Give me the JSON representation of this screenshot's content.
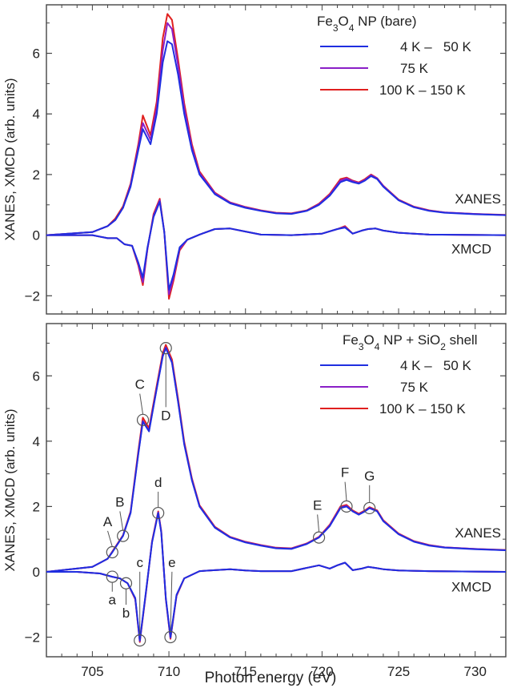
{
  "colors": {
    "blue": "#1f2ee0",
    "purple": "#8a1fc7",
    "red": "#e0201f",
    "axis": "#444444",
    "text": "#222222"
  },
  "x_axis": {
    "label": "Photon energy (eV)",
    "ticks": [
      "705",
      "710",
      "715",
      "720",
      "725",
      "730"
    ]
  },
  "chart_data": [
    {
      "type": "line",
      "title": "Fe3O4 NP (bare)",
      "legend_title": {
        "pre": "Fe",
        "sub1": "3",
        "mid": "O",
        "sub2": "4",
        "post": " NP (bare)"
      },
      "ylabel": "XANES, XMCD (arb. units)",
      "xlim": [
        702,
        732
      ],
      "ylim": [
        -2.6,
        7.6
      ],
      "yticks": [
        "−2",
        "0",
        "2",
        "4",
        "6"
      ],
      "legend": [
        {
          "name": "4 K –   50 K",
          "color": "blue"
        },
        {
          "name": "75 K",
          "color": "purple"
        },
        {
          "name": "100 K – 150 K",
          "color": "red"
        }
      ],
      "series_labels": {
        "xanes": "XANES",
        "xmcd": "XMCD"
      },
      "xanes_x": [
        702,
        705,
        706,
        706.5,
        707,
        707.5,
        708,
        708.3,
        708.8,
        709.2,
        709.6,
        709.9,
        710.2,
        710.6,
        711,
        711.5,
        712,
        713,
        714,
        715,
        716,
        717,
        718,
        719,
        719.8,
        720.5,
        721.2,
        721.6,
        722,
        722.4,
        722.8,
        723.2,
        723.6,
        724,
        725,
        726,
        727,
        728,
        730,
        732
      ],
      "xanes_series": [
        {
          "name": "4 K – 50 K",
          "color": "blue",
          "peak_scale": 0.88,
          "y": [
            0,
            0.1,
            0.3,
            0.5,
            0.9,
            1.6,
            2.8,
            3.5,
            3.0,
            4.0,
            5.7,
            6.4,
            6.3,
            5.3,
            4.0,
            2.8,
            2.0,
            1.35,
            1.05,
            0.9,
            0.8,
            0.72,
            0.7,
            0.8,
            1.0,
            1.3,
            1.75,
            1.82,
            1.75,
            1.7,
            1.8,
            1.95,
            1.85,
            1.6,
            1.15,
            0.92,
            0.8,
            0.74,
            0.69,
            0.66
          ]
        },
        {
          "name": "75 K",
          "color": "purple",
          "peak_scale": 0.95,
          "y": [
            0,
            0.1,
            0.3,
            0.5,
            0.9,
            1.65,
            2.9,
            3.7,
            3.15,
            4.2,
            6.1,
            7.0,
            6.8,
            5.6,
            4.2,
            2.9,
            2.05,
            1.38,
            1.07,
            0.92,
            0.81,
            0.73,
            0.71,
            0.81,
            1.02,
            1.33,
            1.8,
            1.87,
            1.78,
            1.72,
            1.82,
            1.98,
            1.87,
            1.62,
            1.16,
            0.93,
            0.81,
            0.75,
            0.7,
            0.66
          ]
        },
        {
          "name": "100 K – 150 K",
          "color": "red",
          "peak_scale": 1.0,
          "y": [
            0,
            0.1,
            0.3,
            0.55,
            0.95,
            1.7,
            3.0,
            3.95,
            3.3,
            4.4,
            6.5,
            7.3,
            7.1,
            5.8,
            4.35,
            3.0,
            2.1,
            1.4,
            1.08,
            0.93,
            0.82,
            0.74,
            0.72,
            0.82,
            1.04,
            1.36,
            1.85,
            1.9,
            1.8,
            1.74,
            1.85,
            2.0,
            1.88,
            1.63,
            1.17,
            0.94,
            0.82,
            0.75,
            0.7,
            0.67
          ]
        }
      ],
      "xmcd_x": [
        702,
        705,
        706,
        706.6,
        707.1,
        707.6,
        708,
        708.3,
        708.6,
        709,
        709.4,
        709.7,
        710,
        710.3,
        710.7,
        711.2,
        712,
        713,
        714,
        715,
        716,
        718,
        720,
        721,
        721.5,
        722,
        722.6,
        723,
        723.5,
        724,
        725,
        727,
        732
      ],
      "xmcd_series": [
        {
          "name": "4 K – 50 K",
          "color": "blue",
          "y": [
            0,
            0,
            -0.1,
            -0.1,
            -0.3,
            -0.35,
            -0.9,
            -1.4,
            -0.4,
            0.6,
            1.1,
            0.1,
            -1.8,
            -1.3,
            -0.4,
            -0.15,
            0.02,
            0.2,
            0.22,
            0.12,
            0.02,
            0.0,
            0.05,
            0.2,
            0.25,
            0.05,
            0.15,
            0.2,
            0.22,
            0.15,
            0.08,
            0.02,
            0
          ]
        },
        {
          "name": "75 K",
          "color": "purple",
          "y": [
            0,
            0,
            -0.1,
            -0.1,
            -0.3,
            -0.35,
            -0.95,
            -1.55,
            -0.45,
            0.65,
            1.15,
            0.1,
            -1.95,
            -1.4,
            -0.45,
            -0.15,
            0.02,
            0.2,
            0.22,
            0.12,
            0.02,
            0.0,
            0.05,
            0.2,
            0.27,
            0.05,
            0.15,
            0.2,
            0.22,
            0.15,
            0.08,
            0.02,
            0
          ]
        },
        {
          "name": "100 K – 150 K",
          "color": "red",
          "y": [
            0,
            0,
            -0.1,
            -0.1,
            -0.3,
            -0.35,
            -1.0,
            -1.65,
            -0.45,
            0.7,
            1.2,
            0.1,
            -2.1,
            -1.5,
            -0.5,
            -0.15,
            0.02,
            0.2,
            0.22,
            0.12,
            0.02,
            0.0,
            0.05,
            0.2,
            0.3,
            0.05,
            0.15,
            0.2,
            0.22,
            0.15,
            0.08,
            0.02,
            0
          ]
        }
      ],
      "markers": []
    },
    {
      "type": "line",
      "title": "Fe3O4 NP + SiO2 shell",
      "legend_title": {
        "pre": "Fe",
        "sub1": "3",
        "mid": "O",
        "sub2": "4",
        "post": " NP + SiO",
        "sub3": "2",
        "post2": " shell"
      },
      "ylabel": "XANES, XMCD (arb. units)",
      "xlim": [
        702,
        732
      ],
      "ylim": [
        -2.6,
        7.6
      ],
      "yticks": [
        "−2",
        "0",
        "2",
        "4",
        "6"
      ],
      "legend": [
        {
          "name": "4 K –   50 K",
          "color": "blue"
        },
        {
          "name": "75 K",
          "color": "purple"
        },
        {
          "name": "100 K – 150 K",
          "color": "red"
        }
      ],
      "series_labels": {
        "xanes": "XANES",
        "xmcd": "XMCD"
      },
      "xanes_x": [
        702,
        705,
        706,
        706.3,
        707,
        707.5,
        708,
        708.3,
        708.7,
        709.2,
        709.6,
        709.8,
        710.2,
        710.6,
        711,
        711.5,
        712,
        713,
        714,
        715,
        716,
        717,
        718,
        719,
        719.8,
        720.5,
        721.2,
        721.6,
        722,
        722.4,
        722.8,
        723.1,
        723.6,
        724,
        725,
        726,
        727,
        728,
        730,
        732
      ],
      "xanes_series": [
        {
          "name": "4 K – 50 K",
          "color": "blue",
          "y": [
            0,
            0.15,
            0.4,
            0.6,
            1.1,
            1.8,
            3.6,
            4.6,
            4.3,
            5.6,
            6.6,
            6.85,
            6.4,
            5.2,
            3.9,
            2.8,
            2.0,
            1.35,
            1.05,
            0.9,
            0.8,
            0.72,
            0.7,
            0.85,
            1.05,
            1.4,
            1.95,
            2.0,
            1.85,
            1.75,
            1.85,
            1.95,
            1.85,
            1.55,
            1.15,
            0.92,
            0.8,
            0.74,
            0.69,
            0.66
          ]
        },
        {
          "name": "75 K",
          "color": "purple",
          "y": [
            0,
            0.15,
            0.4,
            0.6,
            1.1,
            1.82,
            3.62,
            4.62,
            4.32,
            5.62,
            6.62,
            6.87,
            6.42,
            5.22,
            3.92,
            2.82,
            2.01,
            1.36,
            1.06,
            0.91,
            0.81,
            0.73,
            0.71,
            0.86,
            1.06,
            1.42,
            1.97,
            2.02,
            1.86,
            1.76,
            1.86,
            1.96,
            1.86,
            1.56,
            1.16,
            0.93,
            0.81,
            0.75,
            0.7,
            0.66
          ]
        },
        {
          "name": "100 K – 150 K",
          "color": "red",
          "y": [
            0,
            0.15,
            0.4,
            0.62,
            1.12,
            1.85,
            3.7,
            4.72,
            4.4,
            5.7,
            6.7,
            6.95,
            6.5,
            5.3,
            3.98,
            2.86,
            2.04,
            1.38,
            1.07,
            0.92,
            0.82,
            0.74,
            0.72,
            0.87,
            1.07,
            1.44,
            2.0,
            2.05,
            1.88,
            1.78,
            1.88,
            1.98,
            1.88,
            1.58,
            1.17,
            0.94,
            0.82,
            0.75,
            0.7,
            0.67
          ]
        }
      ],
      "xmcd_x": [
        702,
        704,
        705.5,
        706.3,
        706.8,
        707.3,
        707.8,
        708.1,
        708.5,
        708.9,
        709.3,
        709.5,
        709.8,
        710.1,
        710.5,
        711,
        712,
        713,
        714,
        715,
        716,
        718,
        719.8,
        720.5,
        721,
        721.5,
        722,
        722.6,
        723,
        723.5,
        724,
        725,
        727,
        732
      ],
      "xmcd_series": [
        {
          "name": "4 K – 50 K",
          "color": "blue",
          "y": [
            0,
            0,
            -0.05,
            -0.15,
            -0.2,
            -0.35,
            -0.8,
            -2.1,
            -0.6,
            0.9,
            1.8,
            1.2,
            -0.8,
            -2.0,
            -0.7,
            -0.2,
            0.02,
            0.05,
            0.08,
            0.04,
            0.02,
            0.02,
            0.2,
            0.1,
            0.2,
            0.28,
            0.05,
            0.1,
            0.15,
            0.12,
            0.08,
            0.04,
            0.02,
            0
          ]
        },
        {
          "name": "75 K",
          "color": "purple",
          "y": [
            0,
            0,
            -0.05,
            -0.15,
            -0.2,
            -0.35,
            -0.82,
            -2.12,
            -0.62,
            0.92,
            1.82,
            1.22,
            -0.82,
            -2.02,
            -0.72,
            -0.2,
            0.02,
            0.05,
            0.08,
            0.04,
            0.02,
            0.02,
            0.2,
            0.1,
            0.2,
            0.28,
            0.05,
            0.1,
            0.15,
            0.12,
            0.08,
            0.04,
            0.02,
            0
          ]
        },
        {
          "name": "100 K – 150 K",
          "color": "red",
          "y": [
            0,
            0,
            -0.05,
            -0.15,
            -0.2,
            -0.35,
            -0.84,
            -2.15,
            -0.64,
            0.94,
            1.85,
            1.25,
            -0.84,
            -2.05,
            -0.74,
            -0.2,
            0.02,
            0.05,
            0.08,
            0.04,
            0.02,
            0.02,
            0.2,
            0.1,
            0.2,
            0.28,
            0.05,
            0.1,
            0.15,
            0.12,
            0.08,
            0.04,
            0.02,
            0
          ]
        }
      ],
      "markers": [
        {
          "label": "A",
          "x": 706.3,
          "y": 0.6,
          "label_at": {
            "x": 706.0,
            "y": 1.4
          }
        },
        {
          "label": "B",
          "x": 707.0,
          "y": 1.1,
          "label_at": {
            "x": 706.8,
            "y": 2.0
          }
        },
        {
          "label": "C",
          "x": 708.3,
          "y": 4.65,
          "label_at": {
            "x": 708.1,
            "y": 5.6
          }
        },
        {
          "label": "D",
          "x": 709.8,
          "y": 6.85,
          "label_at": {
            "x": 709.8,
            "y": 4.65
          }
        },
        {
          "label": "E",
          "x": 719.8,
          "y": 1.05,
          "label_at": {
            "x": 719.7,
            "y": 1.9
          }
        },
        {
          "label": "F",
          "x": 721.6,
          "y": 2.0,
          "label_at": {
            "x": 721.5,
            "y": 2.9
          }
        },
        {
          "label": "G",
          "x": 723.1,
          "y": 1.95,
          "label_at": {
            "x": 723.1,
            "y": 2.8
          }
        },
        {
          "label": "a",
          "x": 706.3,
          "y": -0.15,
          "label_at": {
            "x": 706.3,
            "y": -1.0
          }
        },
        {
          "label": "b",
          "x": 707.2,
          "y": -0.35,
          "label_at": {
            "x": 707.2,
            "y": -1.4
          }
        },
        {
          "label": "c",
          "x": 708.1,
          "y": -2.1,
          "label_at": {
            "x": 708.1,
            "y": 0.15
          }
        },
        {
          "label": "d",
          "x": 709.3,
          "y": 1.8,
          "label_at": {
            "x": 709.3,
            "y": 2.6
          }
        },
        {
          "label": "e",
          "x": 710.1,
          "y": -2.0,
          "label_at": {
            "x": 710.2,
            "y": 0.15
          }
        }
      ]
    }
  ]
}
